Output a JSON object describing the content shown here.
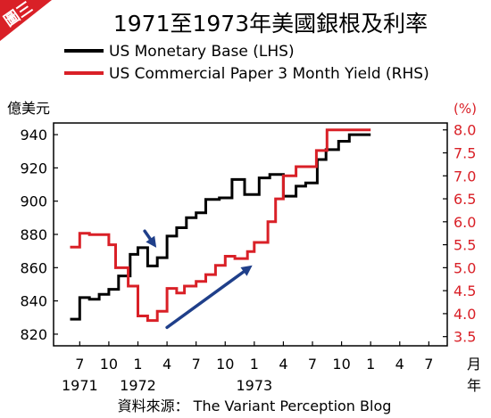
{
  "badge": {
    "text": "圖三",
    "color": "#d92027"
  },
  "chart_data": {
    "type": "line",
    "title": "1971至1973年美國銀根及利率",
    "source": "資料來源： The Variant Perception Blog",
    "left_axis": {
      "label": "億美元",
      "ticks": [
        820,
        840,
        860,
        880,
        900,
        920,
        940
      ],
      "range": [
        813,
        947
      ]
    },
    "right_axis": {
      "label": "(%)",
      "ticks": [
        "3.5",
        "4.0",
        "4.5",
        "5.0",
        "5.5",
        "6.0",
        "6.5",
        "7.0",
        "7.5",
        "8.0"
      ],
      "range": [
        3.3,
        8.15
      ]
    },
    "x_axis": {
      "unit_label": [
        "月",
        "年"
      ],
      "range": [
        0,
        31
      ],
      "ticks": [
        {
          "t": 1,
          "label": "7"
        },
        {
          "t": 4,
          "label": "10"
        },
        {
          "t": 7,
          "label": "1"
        },
        {
          "t": 10,
          "label": "4"
        },
        {
          "t": 13,
          "label": "7"
        },
        {
          "t": 16,
          "label": "10"
        },
        {
          "t": 19,
          "label": "1"
        },
        {
          "t": 22,
          "label": "4"
        },
        {
          "t": 25,
          "label": "7"
        },
        {
          "t": 28,
          "label": "10"
        },
        {
          "t": 31,
          "label": "1"
        },
        {
          "t": 34,
          "label": "4"
        },
        {
          "t": 37,
          "label": "7"
        }
      ],
      "year_labels": [
        {
          "t": 1,
          "label": "1971"
        },
        {
          "t": 7,
          "label": "1972"
        },
        {
          "t": 19,
          "label": "1973"
        }
      ]
    },
    "series": [
      {
        "name": "US Monetary Base (LHS)",
        "color": "#000000",
        "axis": "left",
        "steps": [
          [
            0.0,
            829
          ],
          [
            1.0,
            842
          ],
          [
            2.0,
            841
          ],
          [
            3.0,
            844
          ],
          [
            4.0,
            847
          ],
          [
            5.0,
            855
          ],
          [
            6.2,
            868
          ],
          [
            7.0,
            872
          ],
          [
            8.0,
            861
          ],
          [
            9.0,
            866
          ],
          [
            10.0,
            879
          ],
          [
            11.0,
            884
          ],
          [
            12.0,
            890
          ],
          [
            13.0,
            893
          ],
          [
            14.0,
            901
          ],
          [
            15.4,
            902
          ],
          [
            16.7,
            913
          ],
          [
            18.0,
            904
          ],
          [
            19.5,
            914
          ],
          [
            20.6,
            916
          ],
          [
            22.0,
            903
          ],
          [
            23.3,
            909
          ],
          [
            24.3,
            911
          ],
          [
            25.5,
            925
          ],
          [
            26.4,
            931
          ],
          [
            27.7,
            936
          ],
          [
            28.8,
            940
          ]
        ]
      },
      {
        "name": "US Commercial Paper 3 Month Yield (RHS)",
        "color": "#d92027",
        "axis": "right",
        "steps": [
          [
            0.0,
            5.45
          ],
          [
            1.0,
            5.75
          ],
          [
            2.0,
            5.72
          ],
          [
            4.0,
            5.5
          ],
          [
            4.7,
            5.0
          ],
          [
            6.0,
            4.6
          ],
          [
            7.0,
            3.95
          ],
          [
            8.0,
            3.85
          ],
          [
            9.0,
            4.05
          ],
          [
            10.0,
            4.55
          ],
          [
            11.0,
            4.45
          ],
          [
            11.8,
            4.6
          ],
          [
            13.0,
            4.7
          ],
          [
            14.0,
            4.85
          ],
          [
            15.0,
            5.05
          ],
          [
            16.0,
            5.25
          ],
          [
            17.0,
            5.2
          ],
          [
            18.3,
            5.35
          ],
          [
            19.0,
            5.55
          ],
          [
            20.4,
            6.0
          ],
          [
            21.2,
            6.5
          ],
          [
            22.0,
            7.0
          ],
          [
            23.3,
            7.2
          ],
          [
            25.4,
            7.55
          ],
          [
            26.5,
            8.0
          ]
        ]
      }
    ],
    "arrows": [
      {
        "from": [
          7.7,
          882
        ],
        "to": [
          8.9,
          872
        ],
        "color": "#1f3f8a"
      },
      {
        "from": [
          10.0,
          3.7
        ],
        "to": [
          18.8,
          5.05
        ],
        "color": "#1f3f8a",
        "axis": "right"
      }
    ]
  }
}
